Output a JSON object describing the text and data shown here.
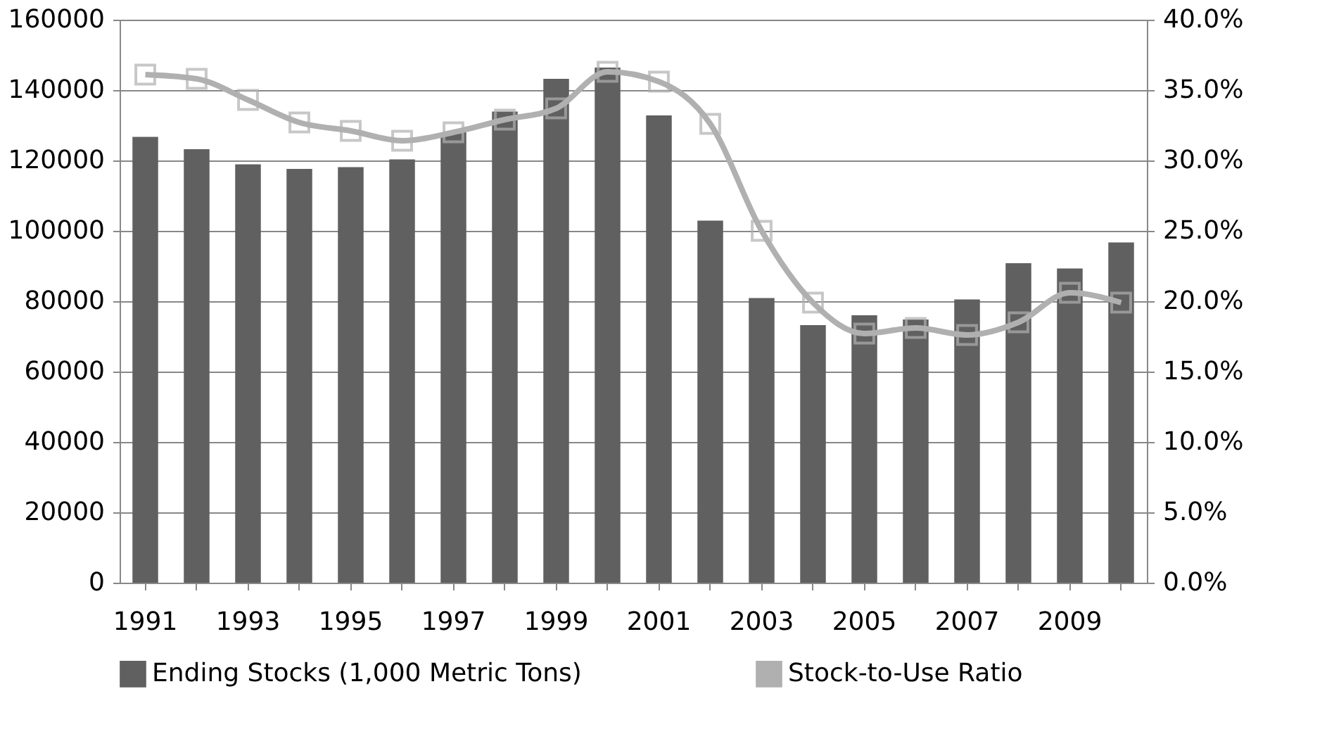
{
  "chart_data": {
    "type": "bar",
    "categories": [
      "1991",
      null,
      "1993",
      null,
      "1995",
      null,
      "1997",
      null,
      "1999",
      null,
      "2001",
      null,
      "2003",
      null,
      "2005",
      null,
      "2007",
      null,
      "2009",
      null
    ],
    "series": [
      {
        "name": "Ending Stocks (1,000 Metric Tons)",
        "color": "#606060",
        "values": [
          126700,
          123200,
          118900,
          117600,
          118100,
          120300,
          128000,
          133900,
          143200,
          146400,
          132800,
          102900,
          80900,
          73200,
          76000,
          74800,
          80500,
          90800,
          89300,
          96700
        ]
      },
      {
        "name": "Stock-to-Use Ratio",
        "type": "line",
        "axis": "y2",
        "color": "#b0b0b0",
        "marker": "square",
        "values": [
          36.1,
          35.8,
          34.3,
          32.7,
          32.1,
          31.4,
          32.0,
          32.9,
          33.7,
          36.3,
          35.6,
          32.6,
          25.0,
          19.9,
          17.7,
          18.1,
          17.6,
          18.5,
          20.6,
          19.9
        ]
      }
    ],
    "ylim": [
      0,
      160000
    ],
    "yticks": [
      0,
      20000,
      40000,
      60000,
      80000,
      100000,
      120000,
      140000,
      160000
    ],
    "y2lim": [
      0,
      40
    ],
    "y2ticks": [
      {
        "value": 0,
        "label": "0.0%"
      },
      {
        "value": 5,
        "label": "5.0%"
      },
      {
        "value": 10,
        "label": "10.0%"
      },
      {
        "value": 15,
        "label": "15.0%"
      },
      {
        "value": 20,
        "label": "20.0%"
      },
      {
        "value": 25,
        "label": "25.0%"
      },
      {
        "value": 30,
        "label": "30.0%"
      },
      {
        "value": 35,
        "label": "35.0%"
      },
      {
        "value": 40,
        "label": "40.0%"
      }
    ],
    "grid": "y",
    "legend": "bottom"
  }
}
